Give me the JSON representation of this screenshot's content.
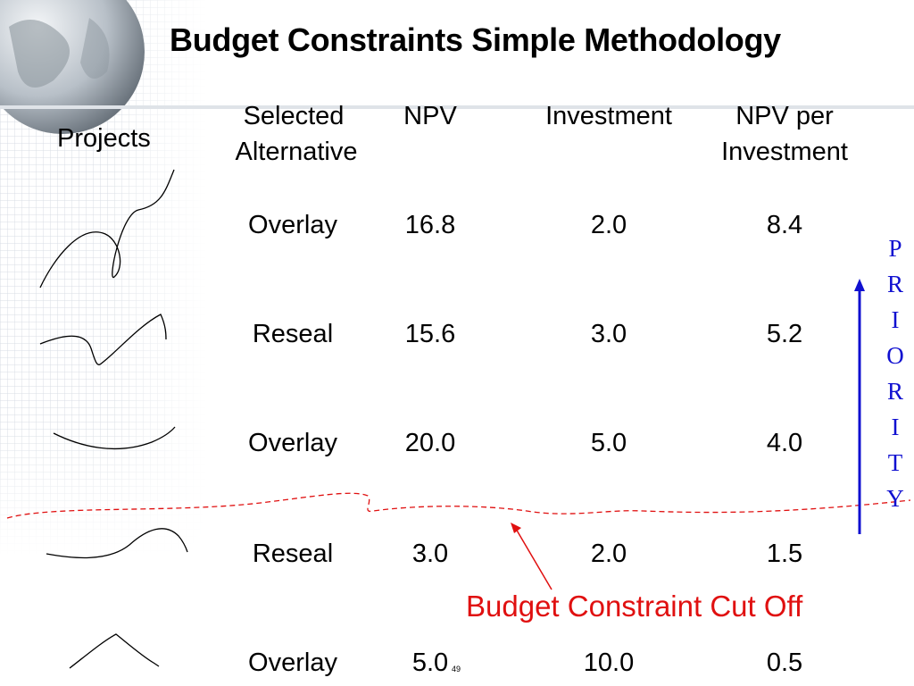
{
  "title": "Budget Constraints Simple Methodology",
  "headers": {
    "projects": "Projects",
    "selected_line1": "Selected",
    "selected_line2": "Alternative",
    "npv": "NPV",
    "investment": "Investment",
    "npv_per_line1": "NPV per",
    "npv_per_line2": "Investment"
  },
  "rows": [
    {
      "alternative": "Overlay",
      "npv": "16.8",
      "investment": "2.0",
      "npv_per_investment": "8.4"
    },
    {
      "alternative": "Reseal",
      "npv": "15.6",
      "investment": "3.0",
      "npv_per_investment": "5.2"
    },
    {
      "alternative": "Overlay",
      "npv": "20.0",
      "investment": "5.0",
      "npv_per_investment": "4.0"
    },
    {
      "alternative": "Reseal",
      "npv": "3.0",
      "investment": "2.0",
      "npv_per_investment": "1.5"
    },
    {
      "alternative": "Overlay",
      "npv": "5.0",
      "investment": "10.0",
      "npv_per_investment": "0.5"
    }
  ],
  "priority_letters": [
    "P",
    "R",
    "I",
    "O",
    "R",
    "I",
    "T",
    "Y"
  ],
  "cutoff_label": "Budget Constraint Cut Off",
  "slide_number": "49",
  "colors": {
    "priority": "#1010d0",
    "cutoff": "#e01010"
  }
}
